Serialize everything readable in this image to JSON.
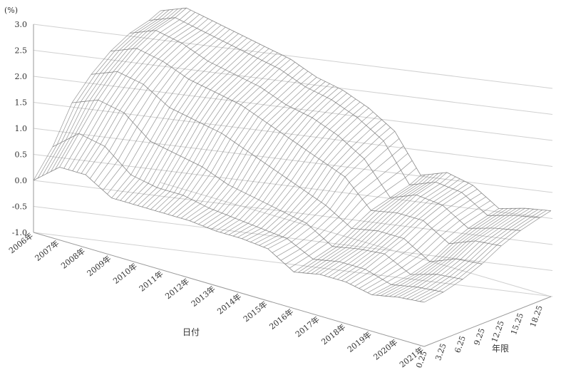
{
  "chart_data": {
    "type": "surface",
    "title": "",
    "unit_label": "(%)",
    "zlabel": "",
    "xlabel": "日付",
    "ylabel": "年限",
    "zlim": [
      -1.0,
      3.0
    ],
    "z_ticks": [
      "3.0",
      "2.5",
      "2.0",
      "1.5",
      "1.0",
      "0.5",
      "0.0",
      "-0.5",
      "-1.0"
    ],
    "date_ticks": [
      "2006年",
      "2007年",
      "2008年",
      "2009年",
      "2010年",
      "2011年",
      "2012年",
      "2013年",
      "2014年",
      "2015年",
      "2016年",
      "2017年",
      "2018年",
      "2019年",
      "2020年",
      "2021年"
    ],
    "tenor_ticks": [
      "0.25",
      "3.25",
      "6.25",
      "9.25",
      "12.25",
      "15.25",
      "18.25"
    ],
    "grid": true,
    "legend": "none",
    "colors": {
      "mesh": "#7a7a7a",
      "grid": "#d0d0d0",
      "axis": "#9a9a9a"
    },
    "tenors": [
      0.25,
      3.25,
      6.25,
      9.25,
      12.25,
      15.25,
      18.25,
      20.0
    ],
    "series": [
      {
        "date": "2006年",
        "values": [
          0.0,
          0.5,
          1.2,
          1.6,
          1.9,
          2.1,
          2.2,
          2.3
        ]
      },
      {
        "date": "2007年",
        "values": [
          0.4,
          0.9,
          1.4,
          1.8,
          2.1,
          2.3,
          2.4,
          2.5
        ]
      },
      {
        "date": "2008年",
        "values": [
          0.4,
          0.8,
          1.3,
          1.7,
          2.0,
          2.2,
          2.3,
          2.4
        ]
      },
      {
        "date": "2009年",
        "values": [
          0.1,
          0.4,
          0.9,
          1.4,
          1.8,
          2.0,
          2.2,
          2.3
        ]
      },
      {
        "date": "2010年",
        "values": [
          0.1,
          0.3,
          0.8,
          1.3,
          1.7,
          1.9,
          2.1,
          2.2
        ]
      },
      {
        "date": "2011年",
        "values": [
          0.1,
          0.3,
          0.7,
          1.2,
          1.6,
          1.8,
          2.0,
          2.1
        ]
      },
      {
        "date": "2012年",
        "values": [
          0.1,
          0.2,
          0.5,
          1.0,
          1.4,
          1.6,
          1.8,
          1.9
        ]
      },
      {
        "date": "2013年",
        "values": [
          0.05,
          0.15,
          0.4,
          0.8,
          1.2,
          1.5,
          1.7,
          1.8
        ]
      },
      {
        "date": "2014年",
        "values": [
          0.05,
          0.1,
          0.3,
          0.6,
          1.0,
          1.3,
          1.5,
          1.6
        ]
      },
      {
        "date": "2015年",
        "values": [
          0.0,
          0.05,
          0.2,
          0.4,
          0.8,
          1.0,
          1.2,
          1.3
        ]
      },
      {
        "date": "2016年",
        "values": [
          -0.3,
          -0.2,
          -0.1,
          0.1,
          0.3,
          0.4,
          0.5,
          0.6
        ]
      },
      {
        "date": "2017年",
        "values": [
          -0.2,
          -0.1,
          0.0,
          0.2,
          0.4,
          0.6,
          0.7,
          0.8
        ]
      },
      {
        "date": "2018年",
        "values": [
          -0.2,
          -0.1,
          0.05,
          0.2,
          0.4,
          0.55,
          0.65,
          0.7
        ]
      },
      {
        "date": "2019年",
        "values": [
          -0.3,
          -0.25,
          -0.2,
          -0.1,
          0.1,
          0.25,
          0.35,
          0.4
        ]
      },
      {
        "date": "2020年",
        "values": [
          -0.2,
          -0.15,
          -0.05,
          0.1,
          0.3,
          0.4,
          0.5,
          0.55
        ]
      },
      {
        "date": "2021年",
        "values": [
          -0.15,
          -0.1,
          0.0,
          0.15,
          0.35,
          0.5,
          0.6,
          0.65
        ]
      }
    ]
  }
}
